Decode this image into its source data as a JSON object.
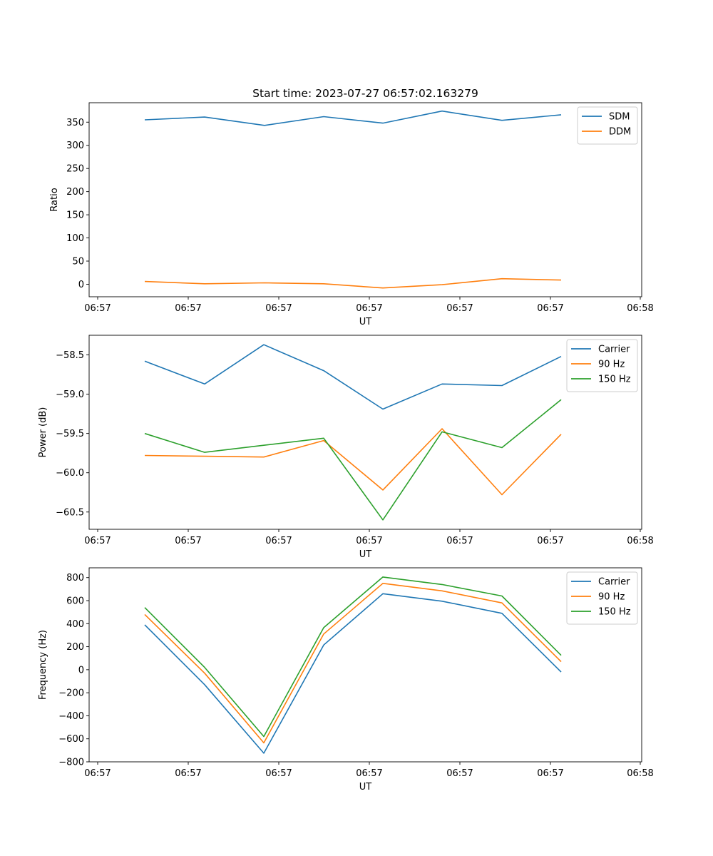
{
  "chart_data": [
    {
      "type": "line",
      "title": "Start time: 2023-07-27 06:57:02.163279",
      "xlabel": "UT",
      "ylabel": "Ratio",
      "x_tick_labels": [
        "06:57",
        "06:57",
        "06:57",
        "06:57",
        "06:57",
        "06:57",
        "06:57",
        "06:58"
      ],
      "y_ticks": [
        0,
        50,
        100,
        150,
        200,
        250,
        300,
        350
      ],
      "y_tick_labels": [
        "0",
        "50",
        "100",
        "150",
        "200",
        "250",
        "300",
        "350"
      ],
      "ylim": [
        -27,
        392
      ],
      "legend_position": "top-right",
      "series": [
        {
          "name": "SDM",
          "color": "#1f77b4",
          "values": [
            355,
            361,
            343,
            362,
            348,
            374,
            354,
            366
          ]
        },
        {
          "name": "DDM",
          "color": "#ff7f0e",
          "values": [
            6,
            1,
            3,
            1,
            -8,
            -1,
            12,
            9
          ]
        }
      ]
    },
    {
      "type": "line",
      "title": "",
      "xlabel": "UT",
      "ylabel": "Power (dB)",
      "x_tick_labels": [
        "06:57",
        "06:57",
        "06:57",
        "06:57",
        "06:57",
        "06:57",
        "06:57",
        "06:58"
      ],
      "y_ticks": [
        -58.5,
        -59.0,
        -59.5,
        -60.0,
        -60.5
      ],
      "y_tick_labels": [
        "−58.5",
        "−59.0",
        "−59.5",
        "−60.0",
        "−60.5"
      ],
      "ylim": [
        -60.72,
        -58.25
      ],
      "legend_position": "top-right",
      "series": [
        {
          "name": "Carrier",
          "color": "#1f77b4",
          "values": [
            -58.58,
            -58.87,
            -58.37,
            -58.7,
            -59.19,
            -58.87,
            -58.89,
            -58.52
          ]
        },
        {
          "name": "90 Hz",
          "color": "#ff7f0e",
          "values": [
            -59.78,
            -59.79,
            -59.8,
            -59.59,
            -60.22,
            -59.44,
            -60.28,
            -59.51
          ]
        },
        {
          "name": "150 Hz",
          "color": "#2ca02c",
          "values": [
            -59.5,
            -59.74,
            -59.65,
            -59.56,
            -60.6,
            -59.48,
            -59.68,
            -59.07
          ]
        }
      ]
    },
    {
      "type": "line",
      "title": "",
      "xlabel": "UT",
      "ylabel": "Frequency (Hz)",
      "x_tick_labels": [
        "06:57",
        "06:57",
        "06:57",
        "06:57",
        "06:57",
        "06:57",
        "06:57",
        "06:58"
      ],
      "y_ticks": [
        800,
        600,
        400,
        200,
        0,
        -200,
        -400,
        -600,
        -800
      ],
      "y_tick_labels": [
        "800",
        "600",
        "400",
        "200",
        "0",
        "−200",
        "−400",
        "−600",
        "−800"
      ],
      "ylim": [
        -800,
        885
      ],
      "legend_position": "top-right",
      "series": [
        {
          "name": "Carrier",
          "color": "#1f77b4",
          "values": [
            390,
            -130,
            -725,
            215,
            660,
            595,
            490,
            -20
          ]
        },
        {
          "name": "90 Hz",
          "color": "#ff7f0e",
          "values": [
            480,
            -30,
            -635,
            310,
            750,
            685,
            580,
            70
          ]
        },
        {
          "name": "150 Hz",
          "color": "#2ca02c",
          "values": [
            540,
            20,
            -580,
            365,
            805,
            740,
            640,
            125
          ]
        }
      ]
    }
  ]
}
